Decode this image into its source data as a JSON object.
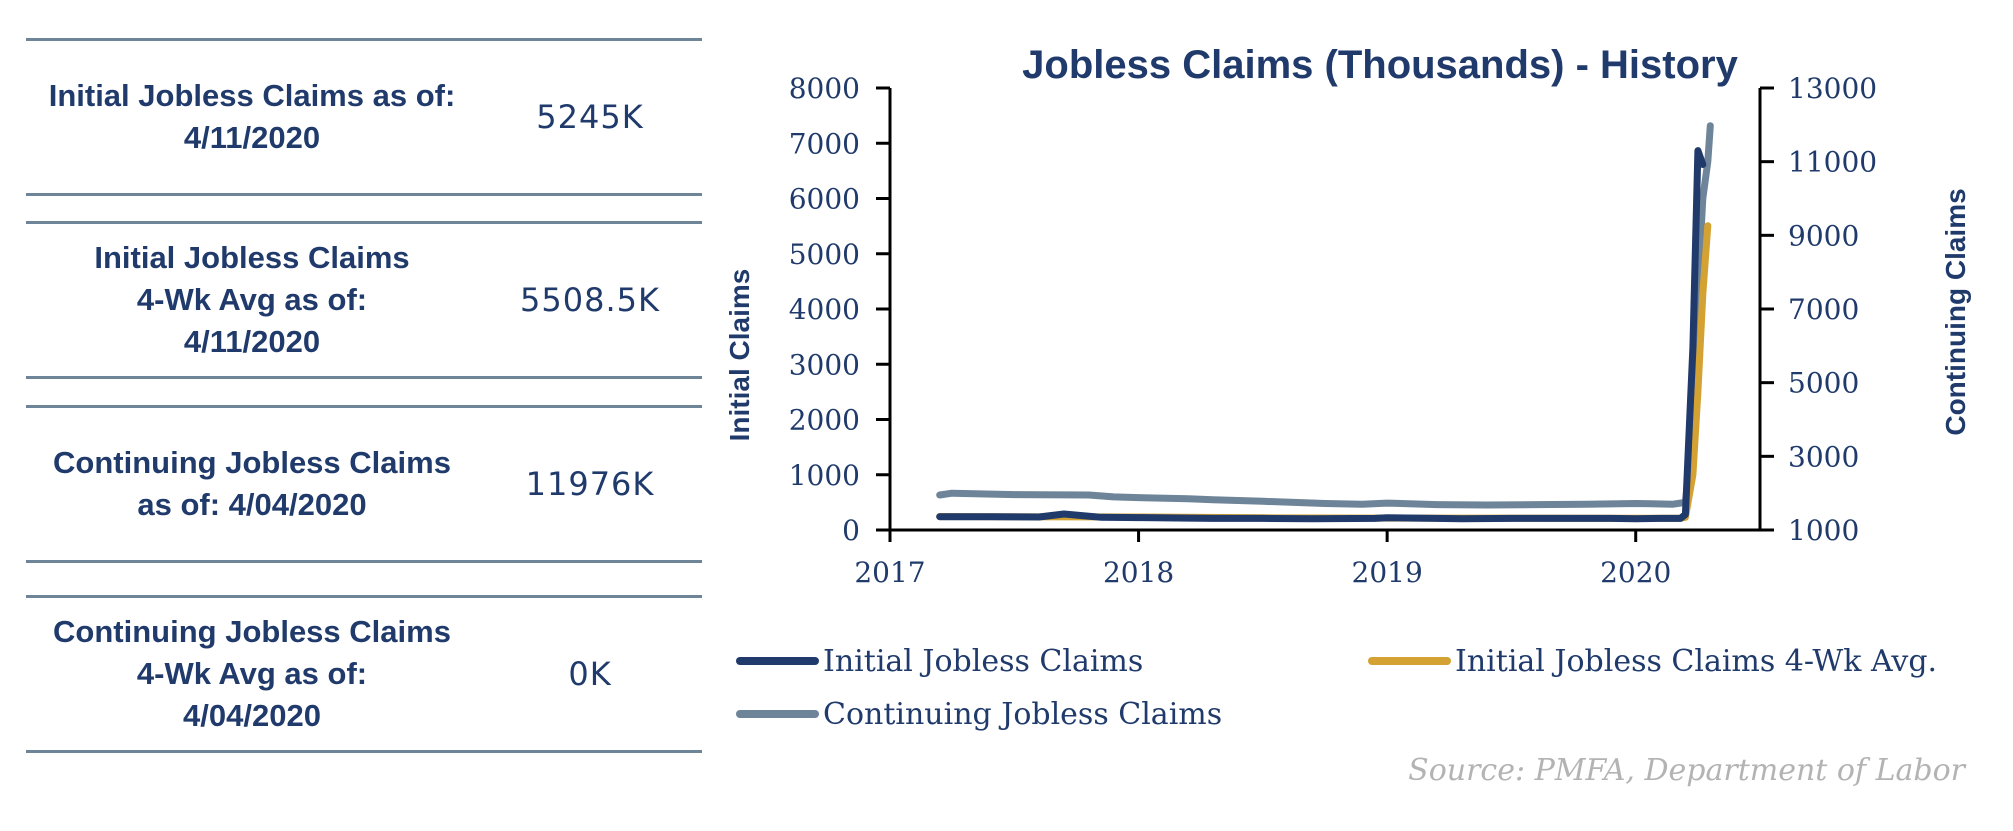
{
  "stats": [
    {
      "label": "Initial Jobless Claims as of:\n4/11/2020",
      "value": "5245K"
    },
    {
      "label": "Initial Jobless Claims\n4-Wk Avg as of:\n4/11/2020",
      "value": "5508.5K"
    },
    {
      "label": "Continuing Jobless Claims\nas of: 4/04/2020",
      "value": "11976K"
    },
    {
      "label": "Continuing Jobless Claims\n4-Wk Avg as of:\n4/04/2020",
      "value": "0K"
    }
  ],
  "chart_data": {
    "type": "line",
    "title": "Jobless Claims (Thousands) - History",
    "ylabel": "Initial Claims",
    "y2label": "Continuing Claims",
    "ylim": [
      0,
      8000
    ],
    "y2lim": [
      1000,
      13000
    ],
    "yticks": [
      0,
      1000,
      2000,
      3000,
      4000,
      5000,
      6000,
      7000,
      8000
    ],
    "y2ticks": [
      1000,
      3000,
      5000,
      7000,
      9000,
      11000,
      13000
    ],
    "xlim": [
      2017,
      2020.5
    ],
    "xticks": [
      "2017",
      "2018",
      "2019",
      "2020"
    ],
    "grid": false,
    "legend_position": "bottom",
    "series": [
      {
        "name": "Initial Jobless Claims",
        "color": "#1f3a6b",
        "axis": "left",
        "x": [
          2017.2,
          2017.4,
          2017.6,
          2017.7,
          2017.75,
          2017.85,
          2018.0,
          2018.2,
          2018.3,
          2018.5,
          2018.7,
          2018.95,
          2019.0,
          2019.2,
          2019.3,
          2019.5,
          2019.7,
          2019.9,
          2020.0,
          2020.1,
          2020.18,
          2020.2,
          2020.23,
          2020.25,
          2020.27
        ],
        "values": [
          240,
          240,
          235,
          290,
          270,
          230,
          225,
          215,
          210,
          210,
          205,
          210,
          220,
          210,
          205,
          210,
          210,
          210,
          205,
          210,
          210,
          281,
          3307,
          6867,
          6615
        ]
      },
      {
        "name": "Initial Jobless Claims 4-Wk Avg.",
        "color": "#d4a232",
        "axis": "left",
        "x": [
          2017.2,
          2017.5,
          2018.0,
          2018.5,
          2019.0,
          2019.5,
          2020.0,
          2020.18,
          2020.2,
          2020.23,
          2020.25,
          2020.27,
          2020.29
        ],
        "values": [
          245,
          240,
          235,
          220,
          215,
          215,
          212,
          212,
          230,
          1000,
          2500,
          4265,
          5508
        ]
      },
      {
        "name": "Continuing Jobless Claims",
        "color": "#6e8498",
        "axis": "right",
        "x": [
          2017.2,
          2017.25,
          2017.5,
          2017.8,
          2017.9,
          2018.0,
          2018.2,
          2018.3,
          2018.5,
          2018.75,
          2018.9,
          2019.0,
          2019.2,
          2019.4,
          2019.6,
          2019.8,
          2020.0,
          2020.15,
          2020.2,
          2020.22,
          2020.25,
          2020.27,
          2020.29,
          2020.3
        ],
        "values": [
          1950,
          2000,
          1960,
          1950,
          1900,
          1880,
          1850,
          1820,
          1780,
          1720,
          1700,
          1730,
          1690,
          1680,
          1690,
          1700,
          1720,
          1700,
          1750,
          3000,
          7500,
          10000,
          11000,
          11976
        ]
      }
    ],
    "source": "Source:  PMFA,  Department of Labor"
  }
}
